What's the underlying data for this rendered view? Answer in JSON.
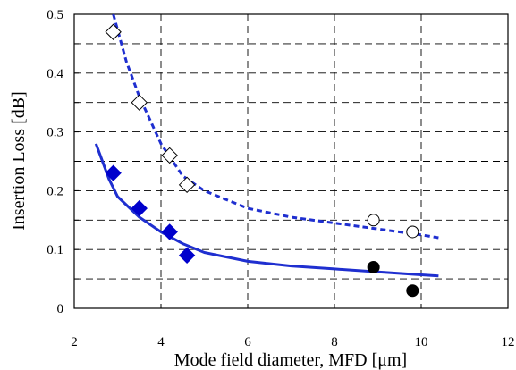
{
  "chart_data": {
    "type": "scatter",
    "title": "",
    "xlabel": "Mode field diameter, MFD [μm]",
    "ylabel": "Insertion Loss [dB]",
    "xlim": [
      2,
      12
    ],
    "ylim": [
      0,
      0.5
    ],
    "x_ticks": [
      2,
      4,
      6,
      8,
      10,
      12
    ],
    "x_tick_labels": [
      "2",
      "4",
      "6",
      "8",
      "10",
      "12"
    ],
    "y_ticks": [
      0,
      0.1,
      0.2,
      0.3,
      0.4,
      0.5
    ],
    "y_tick_labels": [
      "0",
      "0.1",
      "0.2",
      "0.3",
      "0.4",
      "0.5"
    ],
    "grid": true,
    "grid_style": "dashed",
    "series": [
      {
        "kind": "points",
        "marker": "diamond-open",
        "color": "#000000",
        "x": [
          2.9,
          3.5,
          4.2,
          4.6
        ],
        "y": [
          0.47,
          0.35,
          0.26,
          0.21
        ]
      },
      {
        "kind": "points",
        "marker": "diamond-filled",
        "color": "#0000cc",
        "x": [
          2.9,
          3.5,
          4.2,
          4.6
        ],
        "y": [
          0.23,
          0.17,
          0.13,
          0.09
        ]
      },
      {
        "kind": "points",
        "marker": "circle-open",
        "color": "#000000",
        "x": [
          8.9,
          9.8
        ],
        "y": [
          0.15,
          0.13
        ]
      },
      {
        "kind": "points",
        "marker": "circle-filled",
        "color": "#000000",
        "x": [
          8.9,
          9.8
        ],
        "y": [
          0.07,
          0.03
        ]
      },
      {
        "kind": "curve",
        "style": "dashed",
        "color": "#1f2fd0",
        "x": [
          2.9,
          3.2,
          3.5,
          4.0,
          4.5,
          5.0,
          6.0,
          7.0,
          8.0,
          9.0,
          10.0,
          10.4
        ],
        "y": [
          0.5,
          0.42,
          0.36,
          0.28,
          0.225,
          0.2,
          0.17,
          0.155,
          0.145,
          0.135,
          0.125,
          0.12
        ]
      },
      {
        "kind": "curve",
        "style": "solid",
        "color": "#1f2fd0",
        "x": [
          2.5,
          2.8,
          3.0,
          3.5,
          4.0,
          4.5,
          5.0,
          6.0,
          7.0,
          8.0,
          9.0,
          10.0,
          10.4
        ],
        "y": [
          0.28,
          0.22,
          0.19,
          0.155,
          0.13,
          0.11,
          0.095,
          0.08,
          0.072,
          0.067,
          0.062,
          0.057,
          0.055
        ]
      }
    ]
  }
}
